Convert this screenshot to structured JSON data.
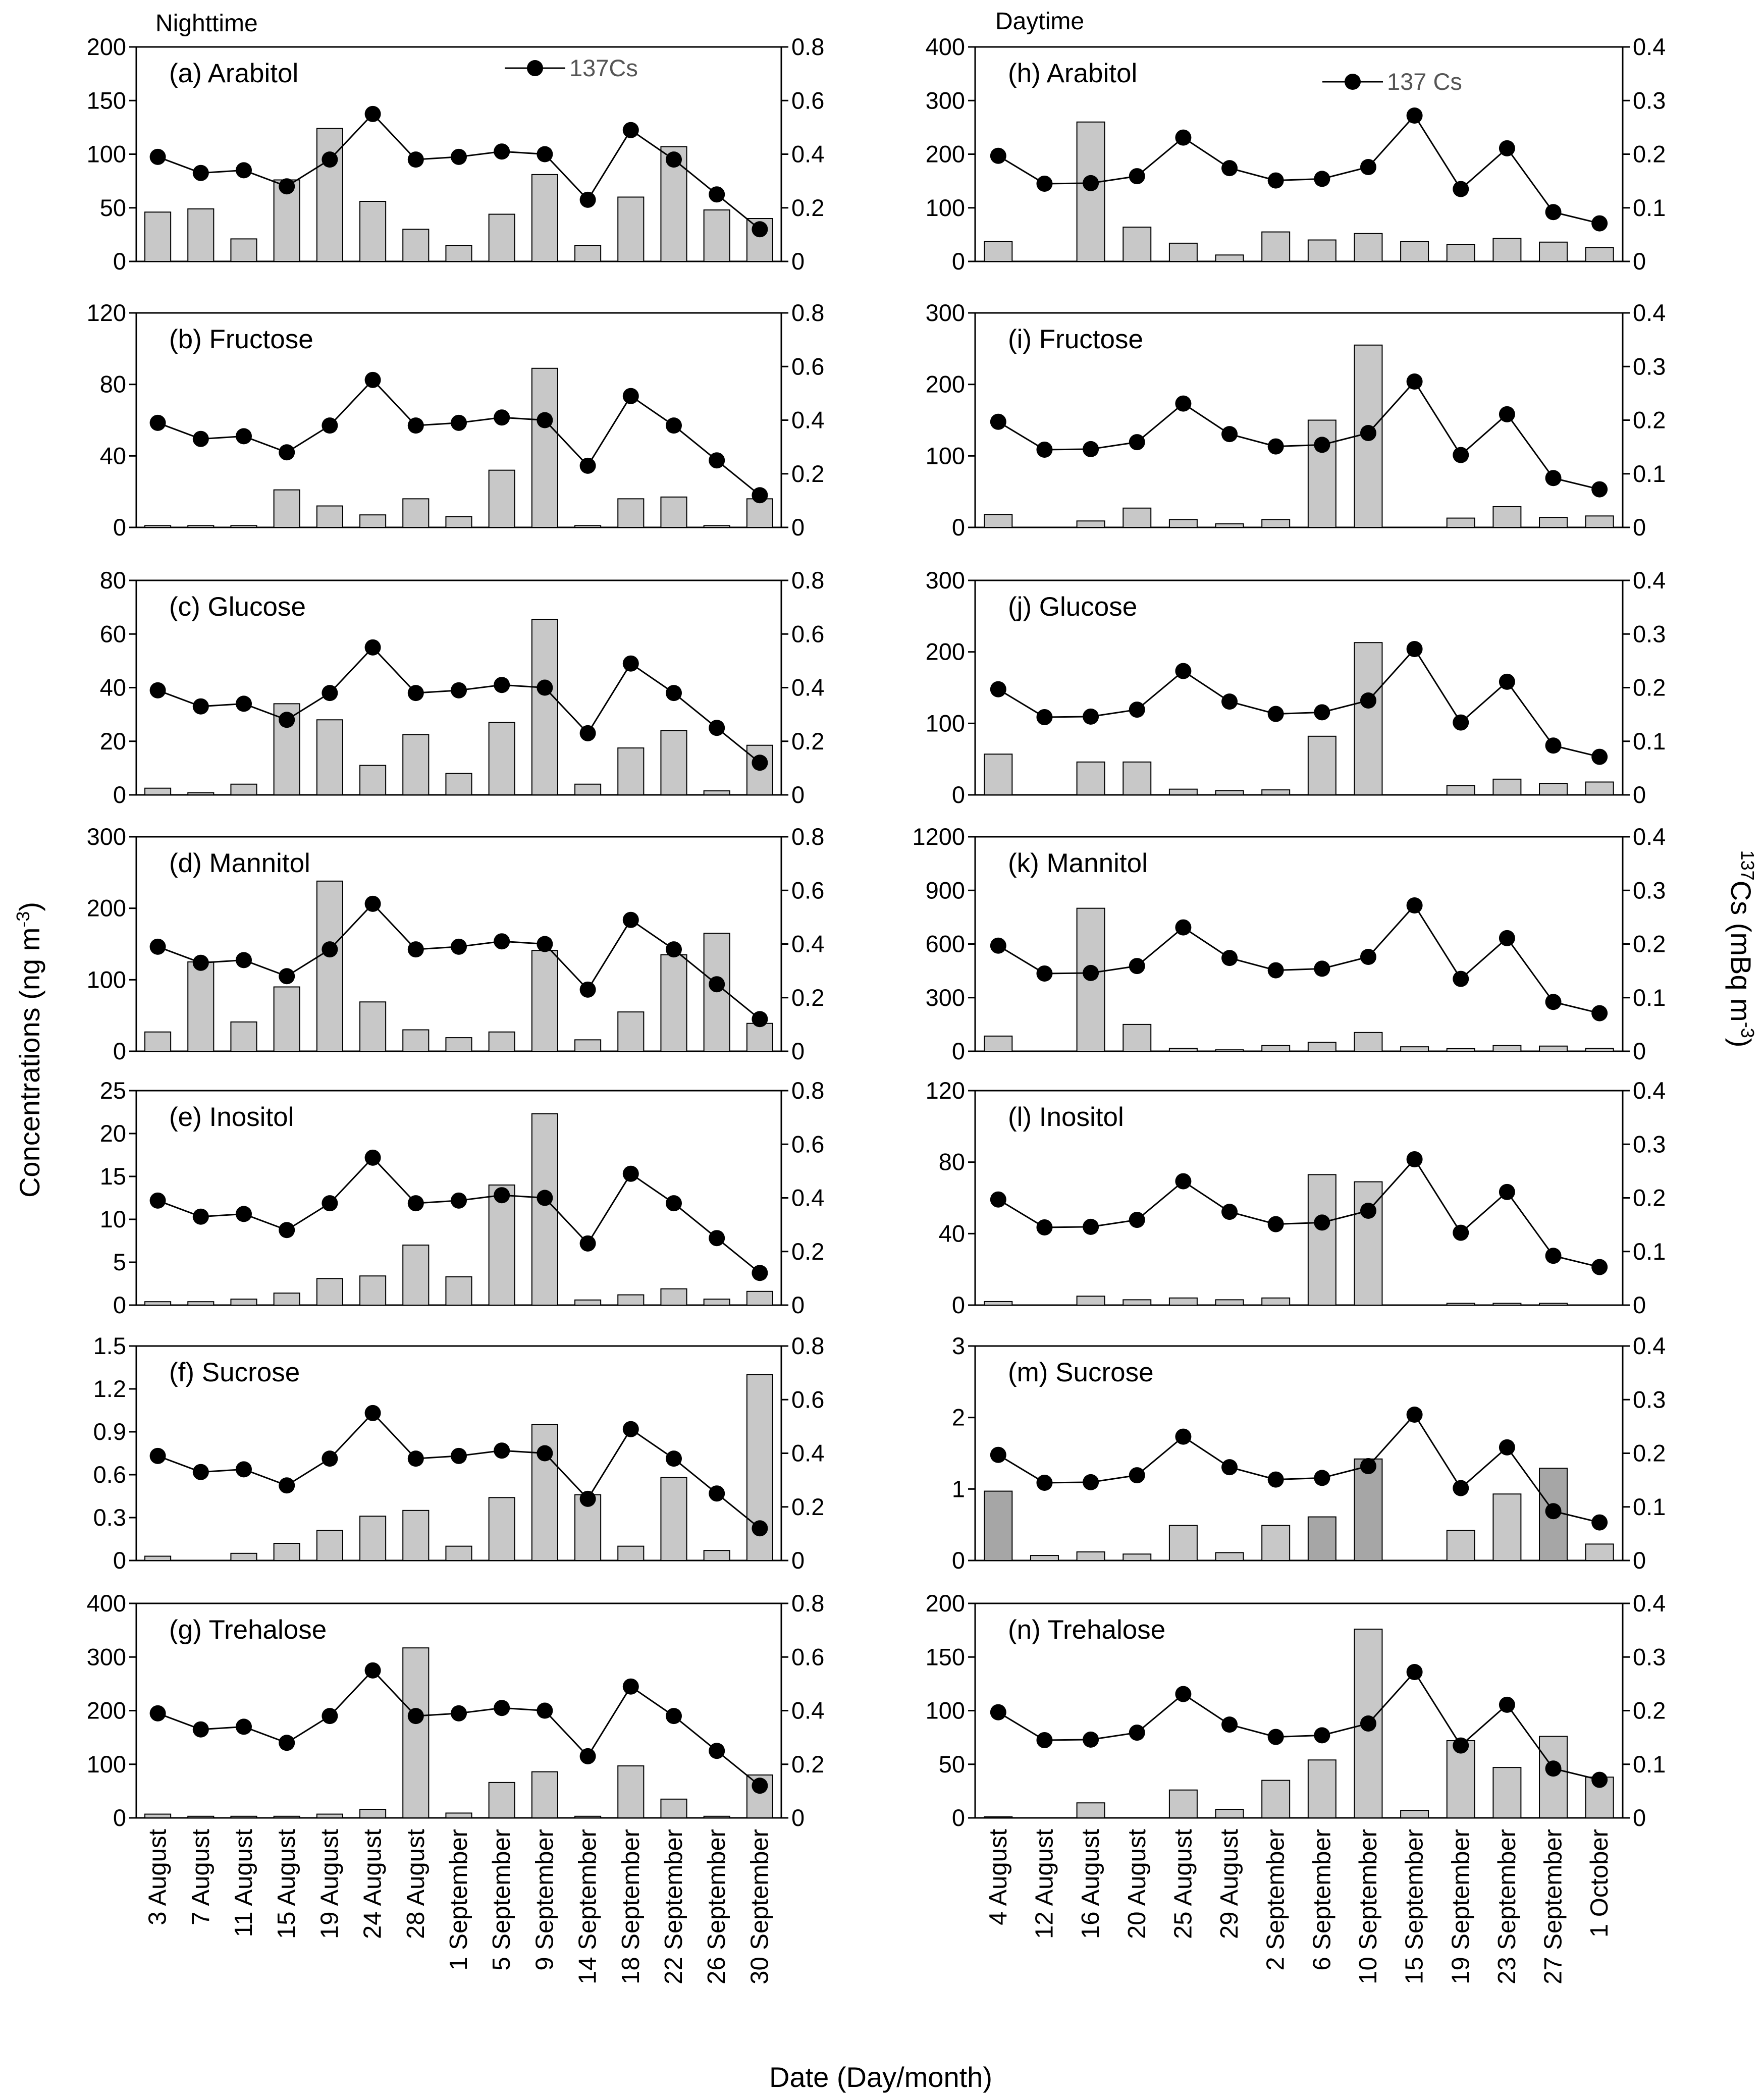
{
  "chart_data": {
    "type": "bar",
    "x_axis_title": "Date (Day/month)",
    "y_left_title": "Concentrations (ng m",
    "y_left_title_sup": "-3",
    "y_left_title_end": ")",
    "y_right_title_sup": "137",
    "y_right_title": "Cs (mBq m",
    "y_right_title_sup2": "-3",
    "y_right_title_end": ")",
    "colors": {
      "bar": "#c8c8c8",
      "bar_dark": "#a6a6a6",
      "bar_stroke": "#000000",
      "line": "#000000"
    },
    "columns": [
      {
        "title": "Nighttime",
        "legend": "137Cs",
        "dates": [
          "3 August",
          "7 August",
          "11 August",
          "15 August",
          "19 August",
          "24 August",
          "28 August",
          "1 September",
          "5 September",
          "9 September",
          "14 September",
          "18 September",
          "22 September",
          "26 September",
          "30 September"
        ],
        "cs137": [
          0.39,
          0.33,
          0.34,
          0.28,
          0.38,
          0.55,
          0.38,
          0.39,
          0.41,
          0.4,
          0.23,
          0.49,
          0.38,
          0.25,
          0.12
        ],
        "cs_ticks": [
          "0",
          "0.2",
          "0.4",
          "0.6",
          "0.8"
        ],
        "cs_max": 0.8,
        "panels": [
          {
            "label": "(a) Arabitol",
            "yticks": [
              "0",
              "50",
              "100",
              "150",
              "200"
            ],
            "ymax": 200,
            "values": [
              46,
              49,
              21,
              76,
              124,
              56,
              30,
              15,
              44,
              81,
              15,
              60,
              107,
              48,
              40
            ]
          },
          {
            "label": "(b) Fructose",
            "yticks": [
              "0",
              "40",
              "80",
              "120"
            ],
            "ymax": 120,
            "values": [
              1,
              1,
              1,
              21,
              12,
              7,
              16,
              6,
              32,
              89,
              1,
              16,
              17,
              1,
              16
            ]
          },
          {
            "label": "(c) Glucose",
            "yticks": [
              "0",
              "20",
              "40",
              "60",
              "80"
            ],
            "ymax": 80,
            "values": [
              2.5,
              0.8,
              4,
              34,
              28,
              11,
              22.5,
              8,
              27,
              65.5,
              4,
              17.5,
              24,
              1.5,
              18.5
            ]
          },
          {
            "label": "(d) Mannitol",
            "yticks": [
              "0",
              "100",
              "200",
              "300"
            ],
            "ymax": 300,
            "values": [
              27,
              125,
              41,
              90,
              238,
              69,
              30,
              19,
              27,
              141,
              16,
              55,
              135,
              165,
              39
            ]
          },
          {
            "label": "(e) Inositol",
            "yticks": [
              "0",
              "5",
              "10",
              "15",
              "20",
              "25"
            ],
            "ymax": 25,
            "values": [
              0.4,
              0.4,
              0.7,
              1.4,
              3.1,
              3.4,
              7,
              3.3,
              14,
              22.3,
              0.6,
              1.2,
              1.9,
              0.7,
              1.6
            ]
          },
          {
            "label": "(f) Sucrose",
            "yticks": [
              "0",
              "0.3",
              "0.6",
              "0.9",
              "1.2",
              "1.5"
            ],
            "ymax": 1.5,
            "values": [
              0.03,
              0,
              0.05,
              0.12,
              0.21,
              0.31,
              0.35,
              0.1,
              0.44,
              0.95,
              0.46,
              0.1,
              0.58,
              0.07,
              1.3
            ]
          },
          {
            "label": "(g) Trehalose",
            "yticks": [
              "0",
              "100",
              "200",
              "300",
              "400"
            ],
            "ymax": 400,
            "values": [
              7,
              3,
              3,
              3,
              7,
              16,
              317,
              9,
              66,
              86,
              3,
              97,
              35,
              3,
              80
            ]
          }
        ]
      },
      {
        "title": "Daytime",
        "legend": "137 Cs",
        "dates": [
          "4 August",
          "12 August",
          "16 August",
          "20 August",
          "25 August",
          "29 August",
          "2 September",
          "6 September",
          "10 September",
          "15 September",
          "19 September",
          "23 September",
          "27 September",
          "1 October"
        ],
        "cs137": [
          0.197,
          0.145,
          0.146,
          0.159,
          0.231,
          0.174,
          0.151,
          0.154,
          0.176,
          0.272,
          0.135,
          0.211,
          0.092,
          0.071
        ],
        "cs_ticks": [
          "0",
          "0.1",
          "0.2",
          "0.3",
          "0.4"
        ],
        "cs_max": 0.4,
        "panels": [
          {
            "label": "(h) Arabitol",
            "yticks": [
              "0",
              "100",
              "200",
              "300",
              "400"
            ],
            "ymax": 400,
            "values": [
              37,
              0,
              260,
              64,
              34,
              12,
              55,
              40,
              52,
              37,
              32,
              43,
              36,
              26
            ]
          },
          {
            "label": "(i) Fructose",
            "yticks": [
              "0",
              "100",
              "200",
              "300"
            ],
            "ymax": 300,
            "values": [
              18,
              0,
              9,
              27,
              11,
              5,
              11,
              150,
              255,
              0,
              13,
              29,
              14,
              16
            ]
          },
          {
            "label": "(j) Glucose",
            "yticks": [
              "0",
              "100",
              "200",
              "300"
            ],
            "ymax": 300,
            "values": [
              57,
              0,
              46,
              46,
              8,
              6,
              7,
              82,
              213,
              0,
              13,
              22,
              16,
              18
            ]
          },
          {
            "label": "(k) Mannitol",
            "yticks": [
              "0",
              "300",
              "600",
              "900",
              "1200"
            ],
            "ymax": 1200,
            "values": [
              85,
              0,
              800,
              150,
              17,
              8,
              32,
              50,
              105,
              25,
              15,
              32,
              29,
              17
            ]
          },
          {
            "label": "(l) Inositol",
            "yticks": [
              "0",
              "40",
              "80",
              "120"
            ],
            "ymax": 120,
            "values": [
              2,
              0,
              5,
              3,
              4,
              3,
              4,
              73,
              69,
              0,
              1,
              1,
              1,
              0
            ]
          },
          {
            "label": "(m) Sucrose",
            "yticks": [
              "0",
              "1",
              "2",
              "3"
            ],
            "ymax": 3,
            "values": [
              0.97,
              0.07,
              0.12,
              0.09,
              0.49,
              0.11,
              0.49,
              0.61,
              1.42,
              0,
              0.42,
              0.93,
              1.29,
              0.23
            ],
            "dark": [
              0,
              7,
              8,
              12
            ]
          },
          {
            "label": "(n) Trehalose",
            "yticks": [
              "0",
              "50",
              "100",
              "150",
              "200"
            ],
            "ymax": 200,
            "values": [
              1,
              0,
              14,
              0,
              26,
              8,
              35,
              54,
              176,
              7,
              72,
              47,
              76,
              38
            ]
          }
        ]
      }
    ]
  }
}
